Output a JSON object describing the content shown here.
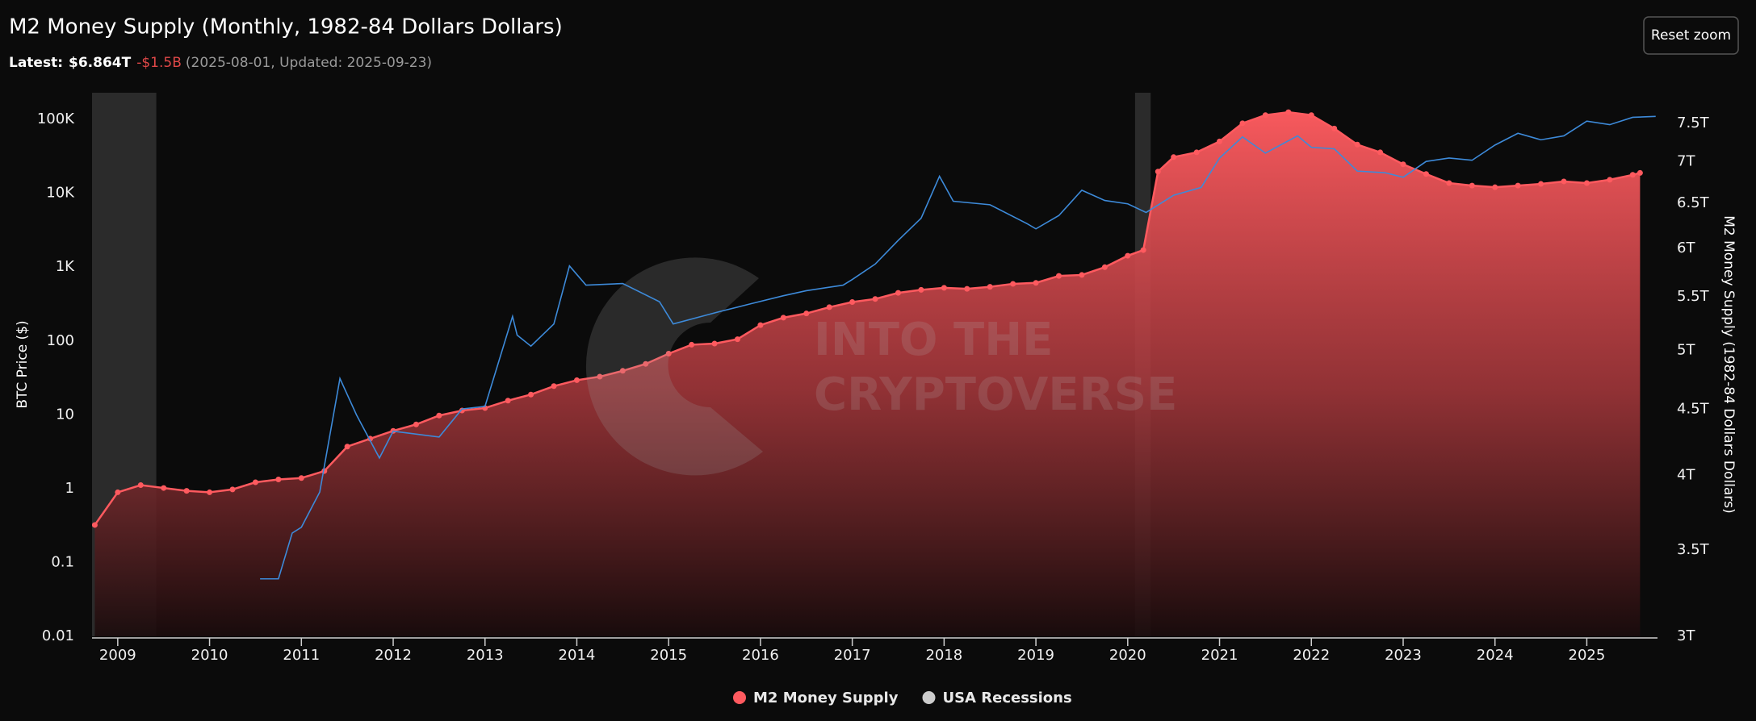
{
  "chart_data": {
    "type": "area",
    "title": "M2 Money Supply (Monthly, 1982-84 Dollars Dollars)",
    "subtitle": {
      "label": "Latest:",
      "value": "$6.864T",
      "change": "-$1.5B",
      "note": "(2025-08-01, Updated: 2025-09-23)"
    },
    "button": "Reset zoom",
    "watermark": [
      "INTO THE",
      "CRYPTOVERSE"
    ],
    "y_label": "BTC Price ($)",
    "y2_label": "M2 Money Supply (1982-84 Dollars Dollars)",
    "xlim": [
      2008.72,
      2025.77
    ],
    "xticks": [
      2009,
      2010,
      2011,
      2012,
      2013,
      2014,
      2015,
      2016,
      2017,
      2018,
      2019,
      2020,
      2021,
      2022,
      2023,
      2024,
      2025
    ],
    "ylim": [
      0.01,
      230000
    ],
    "ylog": true,
    "yticks": [
      0.01,
      0.1,
      1,
      10,
      100,
      {
        "value": 1000,
        "label": "1K"
      },
      {
        "value": 10000,
        "label": "10K"
      },
      {
        "value": 100000,
        "label": "100K"
      }
    ],
    "y2lim": [
      3,
      7.92
    ],
    "y2log": true,
    "y2ticks": [
      {
        "value": 3,
        "label": "3T"
      },
      {
        "value": 3.5,
        "label": "3.5T"
      },
      {
        "value": 4,
        "label": "4T"
      },
      {
        "value": 4.5,
        "label": "4.5T"
      },
      {
        "value": 5,
        "label": "5T"
      },
      {
        "value": 5.5,
        "label": "5.5T"
      },
      {
        "value": 6,
        "label": "6T"
      },
      {
        "value": 6.5,
        "label": "6.5T"
      },
      {
        "value": 7,
        "label": "7T"
      },
      {
        "value": 7.5,
        "label": "7.5T"
      }
    ],
    "grid": true,
    "legend": "bottom",
    "series": [
      {
        "name": "M2 Money Supply",
        "type": "area",
        "axis": "y2",
        "color": "#ff5a5f",
        "x": [
          2008.75,
          2009.0,
          2009.25,
          2009.5,
          2009.75,
          2010.0,
          2010.25,
          2010.5,
          2010.75,
          2011.0,
          2011.25,
          2011.5,
          2011.75,
          2012.0,
          2012.25,
          2012.5,
          2012.75,
          2013.0,
          2013.25,
          2013.5,
          2013.75,
          2014.0,
          2014.25,
          2014.5,
          2014.75,
          2015.0,
          2015.25,
          2015.5,
          2015.75,
          2016.0,
          2016.25,
          2016.5,
          2016.75,
          2017.0,
          2017.25,
          2017.5,
          2017.75,
          2018.0,
          2018.25,
          2018.5,
          2018.75,
          2019.0,
          2019.25,
          2019.5,
          2019.75,
          2020.0,
          2020.17,
          2020.33,
          2020.5,
          2020.75,
          2021.0,
          2021.25,
          2021.5,
          2021.75,
          2022.0,
          2022.25,
          2022.5,
          2022.75,
          2023.0,
          2023.25,
          2023.5,
          2023.75,
          2024.0,
          2024.25,
          2024.5,
          2024.75,
          2025.0,
          2025.25,
          2025.5,
          2025.58
        ],
        "values": [
          3.66,
          3.88,
          3.93,
          3.91,
          3.89,
          3.88,
          3.9,
          3.95,
          3.97,
          3.98,
          4.03,
          4.21,
          4.27,
          4.33,
          4.38,
          4.45,
          4.49,
          4.51,
          4.57,
          4.62,
          4.69,
          4.74,
          4.77,
          4.82,
          4.88,
          4.97,
          5.05,
          5.06,
          5.1,
          5.23,
          5.3,
          5.34,
          5.4,
          5.45,
          5.48,
          5.54,
          5.57,
          5.59,
          5.58,
          5.6,
          5.63,
          5.64,
          5.71,
          5.72,
          5.8,
          5.92,
          5.98,
          6.88,
          7.06,
          7.12,
          7.26,
          7.5,
          7.61,
          7.65,
          7.61,
          7.43,
          7.22,
          7.12,
          6.97,
          6.85,
          6.74,
          6.71,
          6.69,
          6.71,
          6.73,
          6.76,
          6.74,
          6.78,
          6.84,
          6.864
        ]
      },
      {
        "type": "line",
        "axis": "y",
        "color": "#3d8ad9",
        "x": [
          2010.55,
          2010.75,
          2010.9,
          2011.0,
          2011.2,
          2011.42,
          2011.6,
          2011.85,
          2012.0,
          2012.5,
          2012.75,
          2013.0,
          2013.3,
          2013.35,
          2013.5,
          2013.75,
          2013.92,
          2014.1,
          2014.5,
          2014.9,
          2015.05,
          2015.5,
          2015.9,
          2016.25,
          2016.5,
          2016.9,
          2017.0,
          2017.25,
          2017.5,
          2017.75,
          2017.95,
          2018.1,
          2018.5,
          2018.9,
          2019.0,
          2019.25,
          2019.5,
          2019.75,
          2020.0,
          2020.2,
          2020.5,
          2020.8,
          2021.0,
          2021.25,
          2021.5,
          2021.85,
          2022.0,
          2022.25,
          2022.5,
          2022.8,
          2023.0,
          2023.25,
          2023.5,
          2023.75,
          2024.0,
          2024.25,
          2024.5,
          2024.75,
          2025.0,
          2025.25,
          2025.5,
          2025.75
        ],
        "values": [
          0.06,
          0.06,
          0.25,
          0.3,
          0.9,
          31,
          10,
          2.6,
          6,
          5,
          12,
          13,
          215,
          120,
          85,
          170,
          1040,
          570,
          600,
          340,
          170,
          240,
          320,
          410,
          480,
          570,
          680,
          1100,
          2300,
          4600,
          17000,
          7800,
          7000,
          3900,
          3300,
          5000,
          11000,
          8000,
          7200,
          5500,
          9400,
          12000,
          30000,
          58000,
          35000,
          60000,
          42000,
          40000,
          20000,
          19000,
          16500,
          27000,
          30000,
          28000,
          45000,
          65000,
          53000,
          60000,
          95000,
          85000,
          107000,
          110000
        ]
      },
      {
        "name": "USA Recessions",
        "type": "band",
        "color": "#cccccc",
        "ranges": [
          [
            2007.92,
            2009.42
          ],
          [
            2020.08,
            2020.25
          ]
        ]
      }
    ]
  }
}
